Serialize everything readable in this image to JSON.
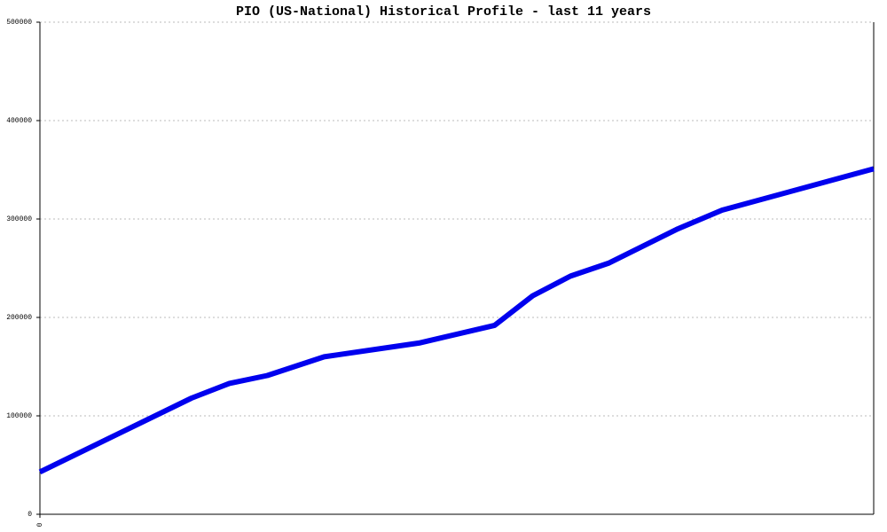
{
  "chart_data": {
    "type": "line",
    "title": "PIO (US-National) Historical Profile - last 11 years",
    "x": [
      0,
      24,
      30,
      36,
      45,
      60,
      72,
      78,
      84,
      90,
      101,
      108,
      132
    ],
    "values": [
      43000,
      118000,
      133000,
      141000,
      160000,
      174000,
      192000,
      222000,
      242000,
      255000,
      290000,
      309000,
      351000
    ],
    "color": "#0000ee",
    "xlim": [
      0,
      132
    ],
    "xticks": [
      0
    ],
    "ylim": [
      0,
      500000
    ],
    "yticks": [
      0,
      100000,
      200000,
      300000,
      400000,
      500000
    ],
    "grid": true
  }
}
